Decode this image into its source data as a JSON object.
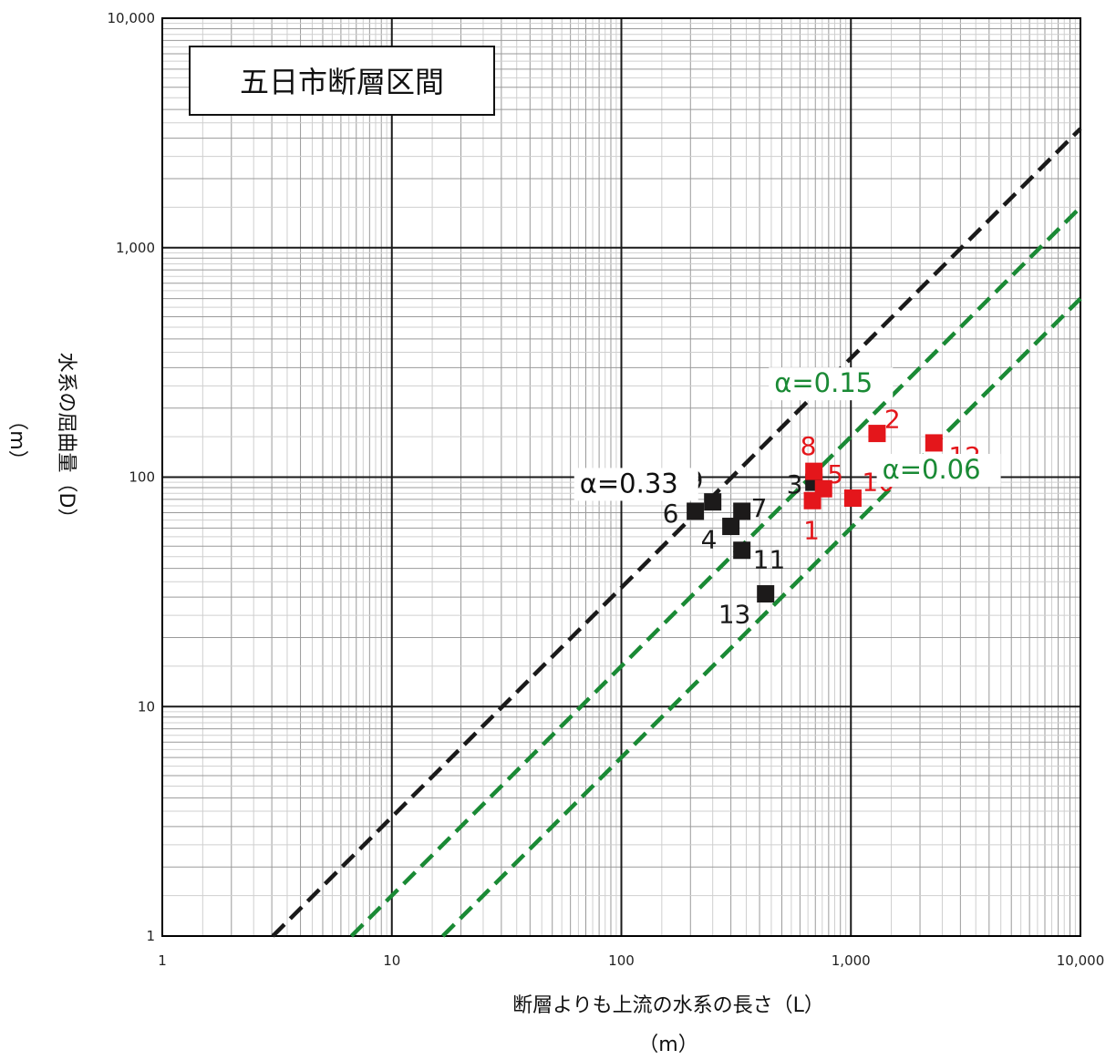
{
  "chart_data": {
    "type": "scatter",
    "title": "五日市断層区間",
    "xlabel": "断層よりも上流の水系の長さ（L）",
    "xunit": "（m）",
    "ylabel": "水系の屈曲量（D）",
    "yunit": "（m）",
    "xscale": "log",
    "yscale": "log",
    "xlim": [
      1,
      10000
    ],
    "ylim": [
      1,
      10000
    ],
    "grid": true,
    "x_ticks": [
      {
        "value": 1,
        "label": "1"
      },
      {
        "value": 10,
        "label": "10"
      },
      {
        "value": 100,
        "label": "100"
      },
      {
        "value": 1000,
        "label": "1,000"
      },
      {
        "value": 10000,
        "label": "10,000"
      }
    ],
    "y_ticks": [
      {
        "value": 1,
        "label": "1"
      },
      {
        "value": 10,
        "label": "10"
      },
      {
        "value": 100,
        "label": "100"
      },
      {
        "value": 1000,
        "label": "1,000"
      },
      {
        "value": 10000,
        "label": "10,000"
      }
    ],
    "lines": [
      {
        "label": "α=0.33",
        "alpha": 0.33,
        "color": "#1a1a1a",
        "dash": true
      },
      {
        "label": "α=0.15",
        "alpha": 0.15,
        "color": "#1a8a35",
        "dash": true
      },
      {
        "label": "α=0.06",
        "alpha": 0.06,
        "color": "#1a8a35",
        "dash": true
      }
    ],
    "series": [
      {
        "color": "#1c1a1a",
        "points": [
          {
            "id": "3",
            "x": 690,
            "y": 95
          },
          {
            "id": "4",
            "x": 300,
            "y": 61
          },
          {
            "id": "6",
            "x": 210,
            "y": 71
          },
          {
            "id": "7",
            "x": 335,
            "y": 71
          },
          {
            "id": "9",
            "x": 250,
            "y": 78
          },
          {
            "id": "11",
            "x": 335,
            "y": 48
          },
          {
            "id": "13",
            "x": 425,
            "y": 31
          }
        ]
      },
      {
        "color": "#e4161b",
        "points": [
          {
            "id": "1",
            "x": 680,
            "y": 79
          },
          {
            "id": "2",
            "x": 1300,
            "y": 155
          },
          {
            "id": "5",
            "x": 760,
            "y": 89
          },
          {
            "id": "8",
            "x": 690,
            "y": 106
          },
          {
            "id": "10",
            "x": 1020,
            "y": 81
          },
          {
            "id": "12",
            "x": 2300,
            "y": 141
          }
        ]
      }
    ]
  }
}
